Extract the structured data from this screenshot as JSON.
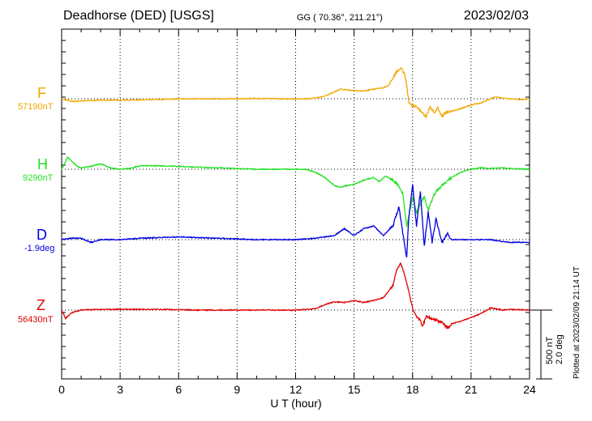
{
  "header": {
    "title": "Deadhorse (DED)  [USGS]",
    "coords": "GG ( 70.36°, 211.21°)",
    "date": "2023/02/03"
  },
  "colors": {
    "F": "#f0a800",
    "H": "#22e022",
    "D": "#0000e0",
    "Z": "#e00000"
  },
  "scale_label": {
    "nt": "500 nT",
    "deg": "2.0 deg"
  },
  "plotted_note": "Plotted at 2023/02/09 21:14 UT",
  "chart_data": {
    "type": "line",
    "title": "Deadhorse (DED)  [USGS]",
    "xlabel": "U T (hour)",
    "ylabel": "",
    "xlim": [
      0,
      24
    ],
    "x_ticks": [
      "0",
      "3",
      "6",
      "9",
      "12",
      "15",
      "18",
      "21",
      "24"
    ],
    "grid": true,
    "scale": {
      "nT_per_bar": 500,
      "deg_per_bar": 2.0
    },
    "series": [
      {
        "name": "F",
        "baseline_label": "57190nT",
        "unit": "nT",
        "baseline": 57190,
        "points": [
          [
            0,
            0
          ],
          [
            0.3,
            -10
          ],
          [
            0.6,
            -20
          ],
          [
            1,
            -15
          ],
          [
            2,
            -10
          ],
          [
            3,
            -10
          ],
          [
            4,
            -8
          ],
          [
            5,
            -5
          ],
          [
            6,
            0
          ],
          [
            7,
            0
          ],
          [
            8,
            0
          ],
          [
            9,
            0
          ],
          [
            10,
            2
          ],
          [
            11,
            0
          ],
          [
            12,
            0
          ],
          [
            12.5,
            0
          ],
          [
            13,
            5
          ],
          [
            13.5,
            20
          ],
          [
            14,
            50
          ],
          [
            14.3,
            70
          ],
          [
            14.6,
            65
          ],
          [
            15,
            60
          ],
          [
            15.5,
            55
          ],
          [
            16,
            70
          ],
          [
            16.5,
            80
          ],
          [
            16.8,
            100
          ],
          [
            17,
            150
          ],
          [
            17.2,
            200
          ],
          [
            17.4,
            220
          ],
          [
            17.6,
            180
          ],
          [
            17.7,
            100
          ],
          [
            17.8,
            -20
          ],
          [
            18,
            -50
          ],
          [
            18.2,
            -60
          ],
          [
            18.5,
            -100
          ],
          [
            18.7,
            -130
          ],
          [
            18.9,
            -60
          ],
          [
            19.1,
            -100
          ],
          [
            19.3,
            -70
          ],
          [
            19.5,
            -130
          ],
          [
            19.7,
            -100
          ],
          [
            20,
            -90
          ],
          [
            20.5,
            -70
          ],
          [
            21,
            -45
          ],
          [
            21.5,
            -30
          ],
          [
            22,
            0
          ],
          [
            22.3,
            15
          ],
          [
            22.6,
            5
          ],
          [
            23,
            0
          ],
          [
            23.5,
            -5
          ],
          [
            24,
            0
          ]
        ]
      },
      {
        "name": "H",
        "baseline_label": "9290nT",
        "unit": "nT",
        "baseline": 9290,
        "points": [
          [
            0,
            0
          ],
          [
            0.15,
            40
          ],
          [
            0.3,
            90
          ],
          [
            0.5,
            60
          ],
          [
            0.8,
            20
          ],
          [
            1,
            10
          ],
          [
            1.5,
            20
          ],
          [
            2,
            40
          ],
          [
            2.5,
            10
          ],
          [
            3,
            0
          ],
          [
            3.5,
            5
          ],
          [
            4,
            25
          ],
          [
            5,
            25
          ],
          [
            6,
            20
          ],
          [
            7,
            15
          ],
          [
            8,
            10
          ],
          [
            9,
            5
          ],
          [
            10,
            0
          ],
          [
            11,
            0
          ],
          [
            12,
            0
          ],
          [
            12.5,
            0
          ],
          [
            13,
            -20
          ],
          [
            13.5,
            -60
          ],
          [
            14,
            -120
          ],
          [
            14.3,
            -130
          ],
          [
            14.6,
            -120
          ],
          [
            15,
            -110
          ],
          [
            15.5,
            -80
          ],
          [
            16,
            -60
          ],
          [
            16.3,
            -90
          ],
          [
            16.6,
            -50
          ],
          [
            17,
            -80
          ],
          [
            17.3,
            -120
          ],
          [
            17.5,
            -180
          ],
          [
            17.6,
            -300
          ],
          [
            17.7,
            -420
          ],
          [
            17.8,
            -350
          ],
          [
            18,
            -200
          ],
          [
            18.2,
            -320
          ],
          [
            18.4,
            -250
          ],
          [
            18.6,
            -200
          ],
          [
            18.8,
            -300
          ],
          [
            19,
            -220
          ],
          [
            19.2,
            -160
          ],
          [
            19.5,
            -120
          ],
          [
            20,
            -60
          ],
          [
            20.5,
            -20
          ],
          [
            21,
            0
          ],
          [
            21.5,
            10
          ],
          [
            22,
            5
          ],
          [
            22.5,
            10
          ],
          [
            23,
            5
          ],
          [
            24,
            0
          ]
        ]
      },
      {
        "name": "D",
        "baseline_label": "-1.9deg",
        "unit": "deg",
        "baseline": -1.9,
        "points": [
          [
            0,
            0
          ],
          [
            0.5,
            0.04
          ],
          [
            1,
            0.04
          ],
          [
            1.5,
            -0.08
          ],
          [
            2,
            0
          ],
          [
            3,
            0
          ],
          [
            4,
            0.04
          ],
          [
            6,
            0.08
          ],
          [
            8,
            0.04
          ],
          [
            10,
            0
          ],
          [
            11,
            0
          ],
          [
            12,
            0
          ],
          [
            13,
            0.04
          ],
          [
            14,
            0.12
          ],
          [
            14.5,
            0.32
          ],
          [
            15,
            0.12
          ],
          [
            15.5,
            0.32
          ],
          [
            16,
            0.4
          ],
          [
            16.5,
            0.12
          ],
          [
            17,
            0.4
          ],
          [
            17.3,
            0.96
          ],
          [
            17.5,
            0.2
          ],
          [
            17.7,
            -0.52
          ],
          [
            17.8,
            0.6
          ],
          [
            18,
            1.6
          ],
          [
            18.2,
            0.4
          ],
          [
            18.4,
            1.4
          ],
          [
            18.6,
            -0.2
          ],
          [
            18.8,
            0.8
          ],
          [
            19,
            -0.08
          ],
          [
            19.2,
            0.6
          ],
          [
            19.5,
            -0.08
          ],
          [
            19.8,
            0.16
          ],
          [
            20,
            0
          ],
          [
            21,
            0
          ],
          [
            22,
            0
          ],
          [
            23,
            -0.08
          ],
          [
            24,
            -0.08
          ]
        ]
      },
      {
        "name": "Z",
        "baseline_label": "56430nT",
        "unit": "nT",
        "baseline": 56430,
        "points": [
          [
            0,
            0
          ],
          [
            0.2,
            -60
          ],
          [
            0.5,
            -20
          ],
          [
            1,
            0
          ],
          [
            2,
            5
          ],
          [
            3,
            5
          ],
          [
            5,
            5
          ],
          [
            7,
            0
          ],
          [
            9,
            0
          ],
          [
            11,
            0
          ],
          [
            12,
            0
          ],
          [
            12.5,
            5
          ],
          [
            13,
            10
          ],
          [
            13.5,
            40
          ],
          [
            14,
            60
          ],
          [
            14.5,
            55
          ],
          [
            15,
            70
          ],
          [
            15.5,
            55
          ],
          [
            16,
            70
          ],
          [
            16.5,
            90
          ],
          [
            17,
            180
          ],
          [
            17.2,
            300
          ],
          [
            17.4,
            340
          ],
          [
            17.6,
            250
          ],
          [
            17.8,
            140
          ],
          [
            18,
            10
          ],
          [
            18.2,
            -50
          ],
          [
            18.4,
            -70
          ],
          [
            18.5,
            -120
          ],
          [
            18.7,
            -50
          ],
          [
            19,
            -60
          ],
          [
            19.5,
            -90
          ],
          [
            19.8,
            -130
          ],
          [
            20,
            -100
          ],
          [
            20.5,
            -80
          ],
          [
            21,
            -55
          ],
          [
            21.5,
            -25
          ],
          [
            22,
            15
          ],
          [
            22.3,
            10
          ],
          [
            22.6,
            0
          ],
          [
            23,
            5
          ],
          [
            24,
            0
          ]
        ]
      }
    ]
  }
}
